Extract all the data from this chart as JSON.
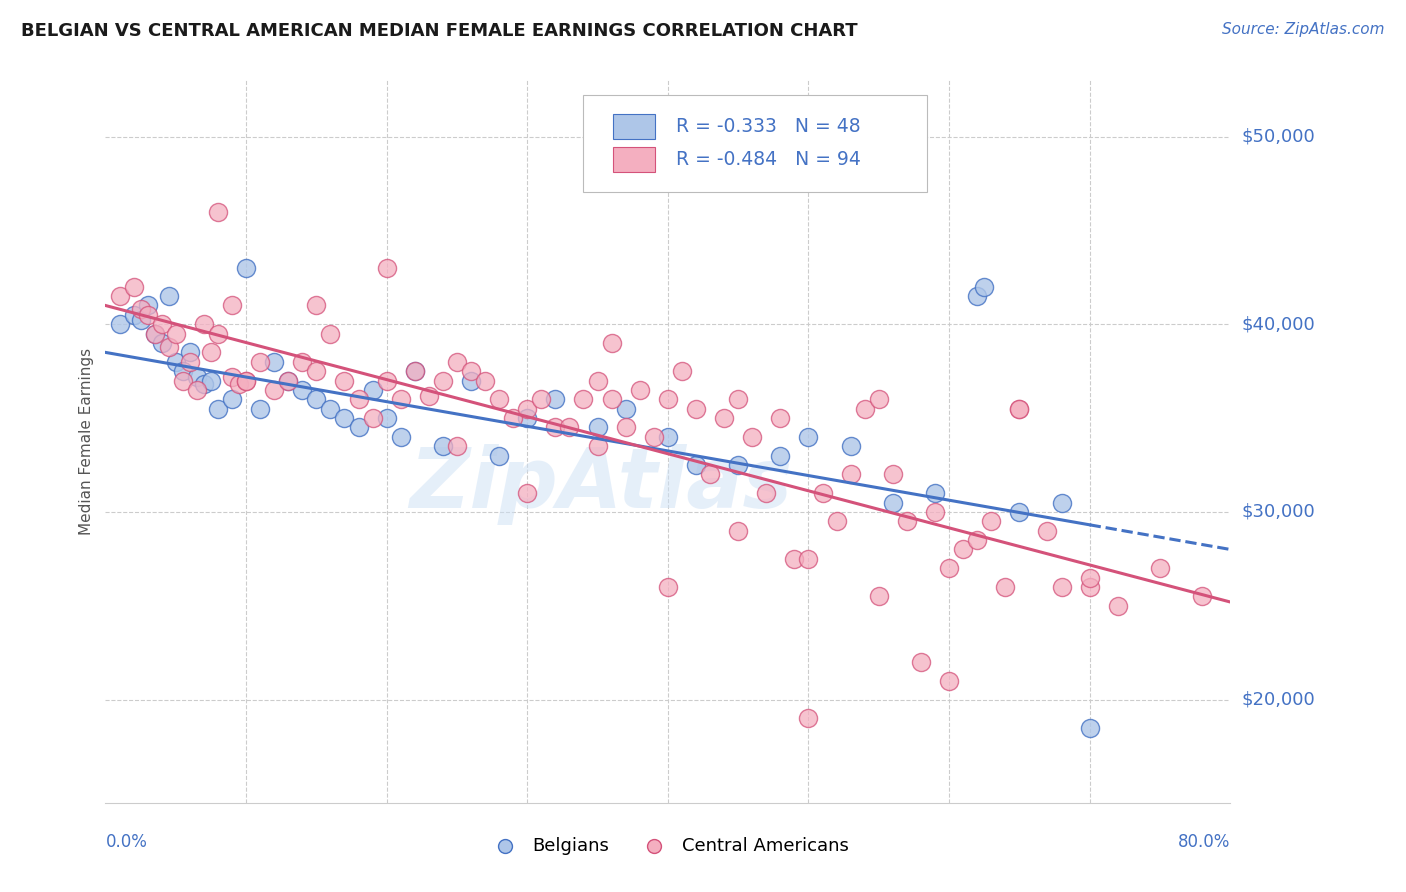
{
  "title": "BELGIAN VS CENTRAL AMERICAN MEDIAN FEMALE EARNINGS CORRELATION CHART",
  "source": "Source: ZipAtlas.com",
  "ylabel": "Median Female Earnings",
  "y_ticks": [
    20000,
    30000,
    40000,
    50000
  ],
  "y_tick_labels": [
    "$20,000",
    "$30,000",
    "$40,000",
    "$50,000"
  ],
  "x_range": [
    0.0,
    0.8
  ],
  "y_range": [
    14500,
    53000
  ],
  "legend_R_belgian": "-0.333",
  "legend_N_belgian": "48",
  "legend_R_central": "-0.484",
  "legend_N_central": "94",
  "color_belgian_face": "#aec6e8",
  "color_belgian_edge": "#4472c4",
  "color_central_face": "#f4afc0",
  "color_central_edge": "#d4527a",
  "color_line_belgian": "#4472c4",
  "color_line_central": "#d4527a",
  "color_accent": "#4472c4",
  "color_grid": "#cccccc",
  "watermark": "ZipAtlas",
  "line_belgian_x0": 0.0,
  "line_belgian_y0": 38500,
  "line_belgian_x1": 0.8,
  "line_belgian_y1": 28000,
  "line_belgian_solid_end": 0.7,
  "line_central_x0": 0.0,
  "line_central_y0": 41000,
  "line_central_x1": 0.8,
  "line_central_y1": 25200,
  "belgians_x": [
    0.01,
    0.02,
    0.025,
    0.03,
    0.035,
    0.04,
    0.045,
    0.05,
    0.055,
    0.06,
    0.065,
    0.07,
    0.075,
    0.08,
    0.09,
    0.1,
    0.11,
    0.12,
    0.13,
    0.14,
    0.15,
    0.16,
    0.17,
    0.18,
    0.19,
    0.2,
    0.21,
    0.22,
    0.24,
    0.26,
    0.28,
    0.3,
    0.32,
    0.35,
    0.37,
    0.4,
    0.42,
    0.45,
    0.48,
    0.5,
    0.53,
    0.56,
    0.59,
    0.62,
    0.65,
    0.68,
    0.7,
    0.625
  ],
  "belgians_y": [
    40000,
    40500,
    40200,
    41000,
    39500,
    39000,
    41500,
    38000,
    37500,
    38500,
    37200,
    36800,
    37000,
    35500,
    36000,
    43000,
    35500,
    38000,
    37000,
    36500,
    36000,
    35500,
    35000,
    34500,
    36500,
    35000,
    34000,
    37500,
    33500,
    37000,
    33000,
    35000,
    36000,
    34500,
    35500,
    34000,
    32500,
    32500,
    33000,
    34000,
    33500,
    30500,
    31000,
    41500,
    30000,
    30500,
    18500,
    42000
  ],
  "central_x": [
    0.01,
    0.02,
    0.025,
    0.03,
    0.035,
    0.04,
    0.045,
    0.05,
    0.055,
    0.06,
    0.065,
    0.07,
    0.075,
    0.08,
    0.09,
    0.095,
    0.1,
    0.11,
    0.12,
    0.13,
    0.14,
    0.15,
    0.16,
    0.17,
    0.18,
    0.19,
    0.2,
    0.21,
    0.22,
    0.23,
    0.24,
    0.25,
    0.26,
    0.27,
    0.28,
    0.29,
    0.3,
    0.31,
    0.32,
    0.33,
    0.34,
    0.35,
    0.36,
    0.37,
    0.38,
    0.39,
    0.4,
    0.41,
    0.42,
    0.43,
    0.44,
    0.45,
    0.46,
    0.47,
    0.48,
    0.49,
    0.5,
    0.51,
    0.52,
    0.53,
    0.54,
    0.55,
    0.56,
    0.57,
    0.58,
    0.59,
    0.6,
    0.61,
    0.62,
    0.63,
    0.64,
    0.65,
    0.67,
    0.68,
    0.7,
    0.72,
    0.75,
    0.78,
    0.08,
    0.09,
    0.1,
    0.15,
    0.2,
    0.25,
    0.3,
    0.35,
    0.36,
    0.4,
    0.45,
    0.5,
    0.55,
    0.6,
    0.65,
    0.7
  ],
  "central_y": [
    41500,
    42000,
    40800,
    40500,
    39500,
    40000,
    38800,
    39500,
    37000,
    38000,
    36500,
    40000,
    38500,
    39500,
    37200,
    36800,
    37000,
    38000,
    36500,
    37000,
    38000,
    37500,
    39500,
    37000,
    36000,
    35000,
    37000,
    36000,
    37500,
    36200,
    37000,
    38000,
    37500,
    37000,
    36000,
    35000,
    35500,
    36000,
    34500,
    34500,
    36000,
    33500,
    36000,
    34500,
    36500,
    34000,
    36000,
    37500,
    35500,
    32000,
    35000,
    29000,
    34000,
    31000,
    35000,
    27500,
    27500,
    31000,
    29500,
    32000,
    35500,
    36000,
    32000,
    29500,
    22000,
    30000,
    21000,
    28000,
    28500,
    29500,
    26000,
    35500,
    29000,
    26000,
    26000,
    25000,
    27000,
    25500,
    46000,
    41000,
    37000,
    41000,
    43000,
    33500,
    31000,
    37000,
    39000,
    26000,
    36000,
    19000,
    25500,
    27000,
    35500,
    26500
  ]
}
